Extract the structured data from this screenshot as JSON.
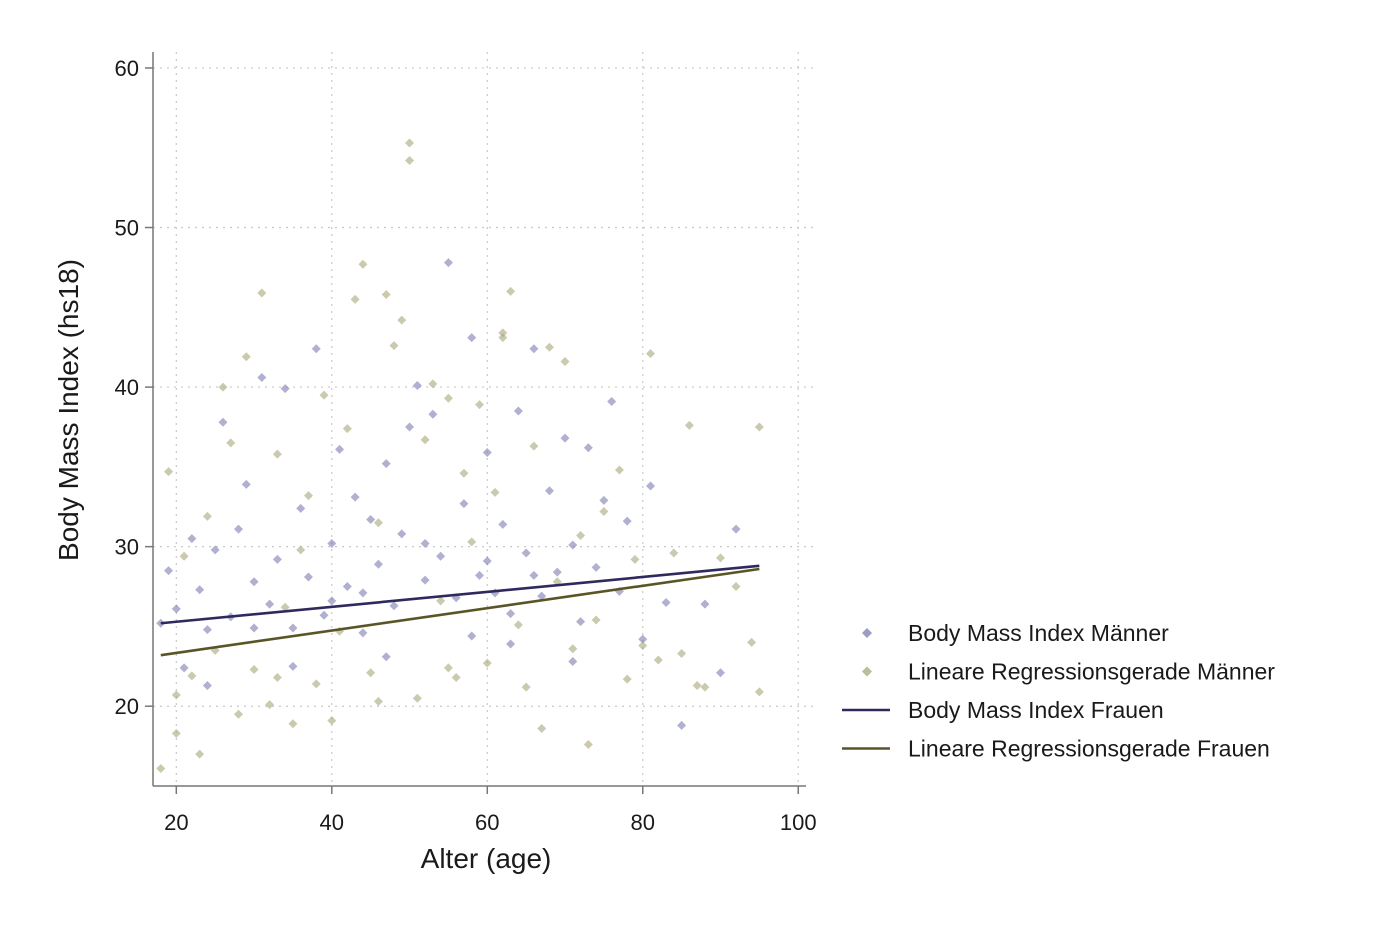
{
  "chart_data": {
    "type": "scatter",
    "xlabel": "Alter (age)",
    "ylabel": "Body Mass Index (hs18)",
    "xlim": [
      17,
      101
    ],
    "ylim": [
      15,
      61
    ],
    "xticks": [
      20,
      40,
      60,
      80,
      100
    ],
    "yticks": [
      20,
      30,
      40,
      50,
      60
    ],
    "grid": true,
    "legend_placement": "right",
    "legend": [
      {
        "label": "Body Mass Index Männer",
        "kind": "marker",
        "color": "#7b7bb0"
      },
      {
        "label": "Lineare Regressionsgerade Männer",
        "kind": "marker",
        "color": "#a8a67a"
      },
      {
        "label": "Body Mass Index Frauen",
        "kind": "line",
        "color": "#2e2a5e"
      },
      {
        "label": "Lineare Regressionsgerade Frauen",
        "kind": "line",
        "color": "#5a5526"
      }
    ],
    "series": [
      {
        "type": "scatter",
        "color": "#7b7bb0",
        "points": [
          [
            18,
            25.2
          ],
          [
            19,
            28.5
          ],
          [
            20,
            26.1
          ],
          [
            21,
            22.4
          ],
          [
            22,
            30.5
          ],
          [
            23,
            27.3
          ],
          [
            24,
            24.8
          ],
          [
            25,
            29.8
          ],
          [
            26,
            37.8
          ],
          [
            27,
            25.6
          ],
          [
            28,
            31.1
          ],
          [
            29,
            33.9
          ],
          [
            30,
            27.8
          ],
          [
            31,
            40.6
          ],
          [
            32,
            26.4
          ],
          [
            33,
            29.2
          ],
          [
            34,
            39.9
          ],
          [
            35,
            24.9
          ],
          [
            36,
            32.4
          ],
          [
            37,
            28.1
          ],
          [
            38,
            42.4
          ],
          [
            39,
            25.7
          ],
          [
            40,
            30.2
          ],
          [
            41,
            36.1
          ],
          [
            42,
            27.5
          ],
          [
            43,
            33.1
          ],
          [
            44,
            24.6
          ],
          [
            45,
            31.7
          ],
          [
            46,
            28.9
          ],
          [
            47,
            35.2
          ],
          [
            48,
            26.3
          ],
          [
            49,
            30.8
          ],
          [
            50,
            37.5
          ],
          [
            51,
            40.1
          ],
          [
            52,
            27.9
          ],
          [
            53,
            38.3
          ],
          [
            54,
            29.4
          ],
          [
            55,
            47.8
          ],
          [
            56,
            26.8
          ],
          [
            57,
            32.7
          ],
          [
            58,
            43.1
          ],
          [
            59,
            28.2
          ],
          [
            60,
            35.9
          ],
          [
            61,
            27.1
          ],
          [
            62,
            31.4
          ],
          [
            63,
            25.8
          ],
          [
            64,
            38.5
          ],
          [
            65,
            29.6
          ],
          [
            66,
            42.4
          ],
          [
            67,
            26.9
          ],
          [
            68,
            33.5
          ],
          [
            69,
            28.4
          ],
          [
            70,
            36.8
          ],
          [
            71,
            30.1
          ],
          [
            72,
            25.3
          ],
          [
            73,
            36.2
          ],
          [
            74,
            28.7
          ],
          [
            75,
            32.9
          ],
          [
            76,
            39.1
          ],
          [
            77,
            27.2
          ],
          [
            78,
            31.6
          ],
          [
            80,
            24.2
          ],
          [
            81,
            33.8
          ],
          [
            83,
            26.5
          ],
          [
            85,
            18.8
          ],
          [
            88,
            26.4
          ],
          [
            90,
            22.1
          ],
          [
            92,
            31.1
          ],
          [
            24,
            21.3
          ],
          [
            35,
            22.5
          ],
          [
            47,
            23.1
          ],
          [
            58,
            24.4
          ],
          [
            63,
            23.9
          ],
          [
            71,
            22.8
          ],
          [
            44,
            27.1
          ],
          [
            52,
            30.2
          ],
          [
            60,
            29.1
          ],
          [
            66,
            28.2
          ],
          [
            30,
            24.9
          ],
          [
            40,
            26.6
          ]
        ]
      },
      {
        "type": "scatter",
        "color": "#a8a67a",
        "points": [
          [
            18,
            16.1
          ],
          [
            19,
            34.7
          ],
          [
            20,
            18.3
          ],
          [
            21,
            29.4
          ],
          [
            22,
            21.9
          ],
          [
            23,
            17.0
          ],
          [
            24,
            31.9
          ],
          [
            25,
            23.5
          ],
          [
            26,
            40.0
          ],
          [
            27,
            36.5
          ],
          [
            28,
            19.5
          ],
          [
            29,
            41.9
          ],
          [
            30,
            22.3
          ],
          [
            31,
            45.9
          ],
          [
            32,
            20.1
          ],
          [
            33,
            35.8
          ],
          [
            34,
            26.2
          ],
          [
            35,
            18.9
          ],
          [
            36,
            29.8
          ],
          [
            37,
            33.2
          ],
          [
            38,
            21.4
          ],
          [
            39,
            39.5
          ],
          [
            40,
            19.1
          ],
          [
            41,
            24.7
          ],
          [
            42,
            37.4
          ],
          [
            43,
            45.5
          ],
          [
            44,
            47.7
          ],
          [
            45,
            22.1
          ],
          [
            46,
            31.5
          ],
          [
            47,
            45.8
          ],
          [
            48,
            42.6
          ],
          [
            49,
            44.2
          ],
          [
            50,
            55.3
          ],
          [
            50,
            54.2
          ],
          [
            51,
            20.5
          ],
          [
            52,
            36.7
          ],
          [
            53,
            40.2
          ],
          [
            54,
            26.6
          ],
          [
            55,
            39.3
          ],
          [
            56,
            21.8
          ],
          [
            57,
            34.6
          ],
          [
            58,
            30.3
          ],
          [
            59,
            38.9
          ],
          [
            60,
            22.7
          ],
          [
            61,
            33.4
          ],
          [
            62,
            43.4
          ],
          [
            62,
            43.1
          ],
          [
            63,
            46.0
          ],
          [
            64,
            25.1
          ],
          [
            65,
            21.2
          ],
          [
            66,
            36.3
          ],
          [
            67,
            18.6
          ],
          [
            68,
            42.5
          ],
          [
            69,
            27.8
          ],
          [
            70,
            41.6
          ],
          [
            71,
            23.6
          ],
          [
            72,
            30.7
          ],
          [
            73,
            17.6
          ],
          [
            74,
            25.4
          ],
          [
            75,
            32.2
          ],
          [
            77,
            34.8
          ],
          [
            78,
            21.7
          ],
          [
            79,
            29.2
          ],
          [
            80,
            23.8
          ],
          [
            81,
            42.1
          ],
          [
            82,
            22.9
          ],
          [
            84,
            29.6
          ],
          [
            85,
            23.3
          ],
          [
            86,
            37.6
          ],
          [
            87,
            21.3
          ],
          [
            88,
            21.2
          ],
          [
            90,
            29.3
          ],
          [
            92,
            27.5
          ],
          [
            94,
            24.0
          ],
          [
            95,
            37.5
          ],
          [
            95,
            20.9
          ],
          [
            20,
            20.7
          ],
          [
            33,
            21.8
          ],
          [
            46,
            20.3
          ],
          [
            55,
            22.4
          ]
        ]
      },
      {
        "type": "line",
        "color": "#2e2a5e",
        "points": [
          [
            18,
            25.2
          ],
          [
            95,
            28.8
          ]
        ]
      },
      {
        "type": "line",
        "color": "#5a5526",
        "points": [
          [
            18,
            23.2
          ],
          [
            95,
            28.6
          ]
        ]
      }
    ]
  }
}
